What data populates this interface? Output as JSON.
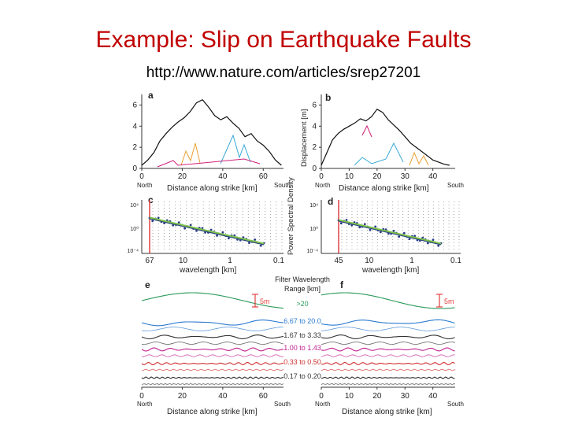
{
  "slide": {
    "title": "Example: Slip on Earthquake Faults",
    "url": "http://www.nature.com/articles/srep27201"
  },
  "colors": {
    "title": "#c00000",
    "total_slip": "#111111",
    "component_cyan": "#3aaad8",
    "component_orange": "#e8a030",
    "component_magenta": "#d0207a",
    "fit_green": "#7cc24a",
    "fit_blue": "#2a3a8a",
    "marker_red": "#e04040",
    "band_green": "#2a9a5a",
    "band_blue": "#2a7ad0",
    "band_dark": "#333333",
    "band_magenta": "#c02090",
    "band_red": "#d03030"
  },
  "chart_data": [
    {
      "panel": "a",
      "type": "line",
      "xlabel": "Distance along strike [km]",
      "x_ticks": [
        "0",
        "20",
        "40",
        "60"
      ],
      "y_ticks": [
        "0",
        "2",
        "4",
        "6"
      ],
      "xlim": [
        0,
        70
      ],
      "ylim": [
        0,
        7
      ],
      "end_labels": [
        "North",
        "South"
      ],
      "x": [
        0,
        3,
        6,
        9,
        12,
        15,
        18,
        21,
        24,
        27,
        30,
        33,
        36,
        39,
        42,
        45,
        48,
        51,
        54,
        57,
        60,
        63,
        66,
        69
      ],
      "y": [
        0.3,
        0.8,
        1.5,
        2.6,
        3.3,
        3.9,
        4.4,
        4.8,
        5.4,
        6.2,
        6.5,
        5.8,
        5.0,
        4.6,
        4.9,
        4.3,
        3.8,
        3.0,
        3.3,
        2.6,
        2.2,
        1.6,
        0.8,
        0.3
      ]
    },
    {
      "panel": "b",
      "type": "line",
      "ylabel": "Displacement [m]",
      "xlabel": "Distance along strike [km]",
      "x_ticks": [
        "0",
        "10",
        "20",
        "30",
        "40"
      ],
      "y_ticks": [
        "0",
        "2",
        "4",
        "6"
      ],
      "xlim": [
        0,
        48
      ],
      "ylim": [
        0,
        7
      ],
      "end_labels": [
        "North",
        "South"
      ],
      "x": [
        0,
        2,
        4,
        6,
        8,
        10,
        12,
        14,
        16,
        18,
        20,
        22,
        24,
        26,
        28,
        30,
        32,
        34,
        36,
        38,
        40,
        42,
        44,
        46
      ],
      "y": [
        0.3,
        1.5,
        2.7,
        3.3,
        3.7,
        4.0,
        4.3,
        4.7,
        4.5,
        4.9,
        5.6,
        5.3,
        4.6,
        4.1,
        3.6,
        3.0,
        2.4,
        2.0,
        1.6,
        1.2,
        0.8,
        0.6,
        0.4,
        0.3
      ]
    },
    {
      "panel": "c",
      "type": "scatter",
      "xlabel": "wavelength [km]",
      "x_ticks": [
        "67",
        "10",
        "1",
        "0.1"
      ],
      "y_ticks": [
        "10⁴",
        "10⁰",
        "10⁻⁴"
      ]
    },
    {
      "panel": "d",
      "type": "scatter",
      "ylabel": "Power Spectral Density",
      "xlabel": "wavelength [km]",
      "x_ticks": [
        "45",
        "10",
        "1",
        "0.1"
      ],
      "y_ticks": [
        "10⁴",
        "10⁰",
        "10⁻⁴"
      ]
    },
    {
      "panel": "e",
      "type": "line",
      "xlabel": "Distance along strike [km]",
      "x_ticks": [
        "0",
        "20",
        "40",
        "60"
      ],
      "end_labels": [
        "North",
        "South"
      ],
      "scale_label": "5m"
    },
    {
      "panel": "f",
      "type": "line",
      "xlabel": "Distance along strike [km]",
      "x_ticks": [
        "0",
        "10",
        "20",
        "30",
        "40"
      ],
      "end_labels": [
        "North",
        "South"
      ],
      "scale_label": "5m"
    }
  ],
  "filter_legend": {
    "title_line1": "Filter Wavelength",
    "title_line2": "Range [km]",
    "bands": [
      ">20",
      "6.67 to 20.0",
      "1.67 to 3.33",
      "1.00 to 1.43",
      "0.33 to 0.50",
      "0.17 to 0.20"
    ]
  }
}
